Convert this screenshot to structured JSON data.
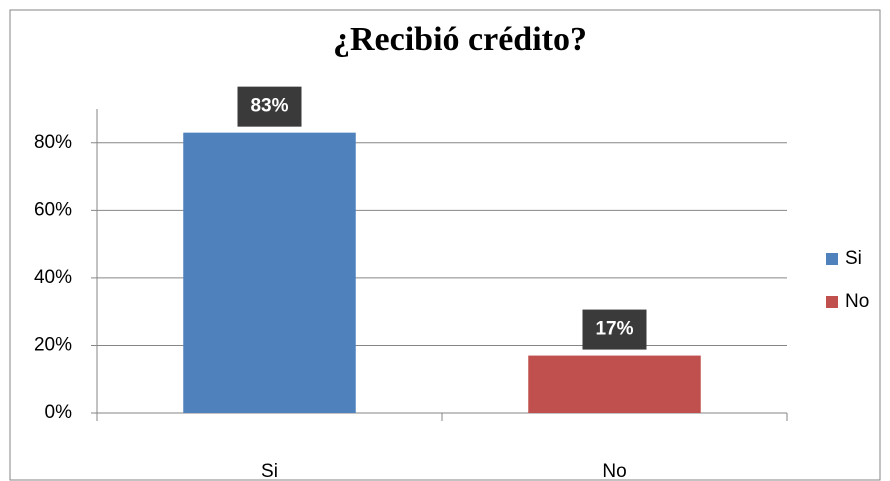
{
  "chart_data": {
    "type": "bar",
    "title": "¿Recibió crédito?",
    "categories": [
      "Si",
      "No"
    ],
    "values": [
      83,
      17
    ],
    "value_labels": [
      "83%",
      "17%"
    ],
    "colors": [
      "#4f81bd",
      "#c0504d"
    ],
    "ylim": [
      0,
      90
    ],
    "yticks": [
      {
        "value": 0,
        "label": "0%"
      },
      {
        "value": 20,
        "label": "20%"
      },
      {
        "value": 40,
        "label": "40%"
      },
      {
        "value": 60,
        "label": "60%"
      },
      {
        "value": 80,
        "label": "80%"
      }
    ],
    "grid": true,
    "legend": "right"
  }
}
